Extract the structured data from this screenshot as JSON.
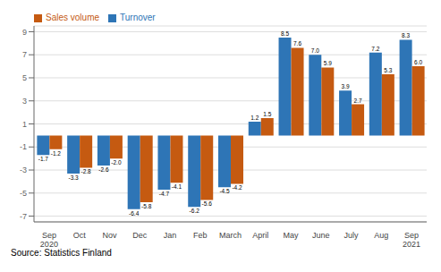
{
  "chart_data": {
    "type": "bar",
    "categories": [
      "Sep\n2020",
      "Oct",
      "Nov",
      "Dec",
      "Jan",
      "Feb",
      "March",
      "April",
      "May",
      "June",
      "July",
      "Aug",
      "Sep\n2021"
    ],
    "series": [
      {
        "name": "Turnover",
        "color": "#2E75B6",
        "values": [
          -1.7,
          -3.3,
          -2.6,
          -6.4,
          -4.7,
          -6.2,
          -4.5,
          1.2,
          8.5,
          7.0,
          3.9,
          7.2,
          8.3
        ],
        "value_labels": [
          "-1.7",
          "-3.3",
          "-2.6",
          "-6.4",
          "-4.7",
          "-6.2",
          "-4.5",
          "1.2",
          "8.5",
          "7.0",
          "3.9",
          "7.2",
          "8.3"
        ]
      },
      {
        "name": "Sales volume",
        "color": "#C55A11",
        "values": [
          -1.2,
          -2.8,
          -2.0,
          -5.8,
          -4.1,
          -5.6,
          -4.2,
          1.5,
          7.6,
          5.9,
          2.7,
          5.3,
          6.0
        ],
        "value_labels": [
          "-1.2",
          "-2.8",
          "-2.0",
          "-5.8",
          "-4.1",
          "-5.6",
          "-4.2",
          "1.5",
          "7.6",
          "5.9",
          "2.7",
          "5.3",
          "6.0"
        ]
      }
    ],
    "ylim": [
      -7.5,
      9.5
    ],
    "yticks": [
      -7,
      -5,
      -3,
      -1,
      1,
      3,
      5,
      7,
      9
    ],
    "grid": true,
    "legend": "upper left",
    "data_labels": true,
    "annotations": [
      "Source: Statistics Finland"
    ]
  }
}
